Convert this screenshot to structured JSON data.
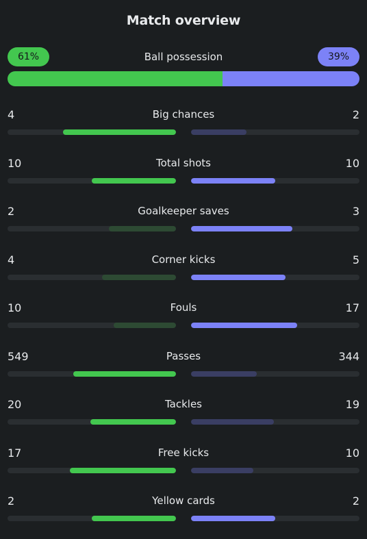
{
  "title": "Match overview",
  "possession": {
    "label": "Ball possession",
    "home": "61%",
    "away": "39%",
    "home_value": 61,
    "away_value": 39
  },
  "colors": {
    "home_win": "#43c74f",
    "home_lose": "#2d4a33",
    "away_win": "#7c82f7",
    "away_lose": "#3a3e63",
    "track": "#2a2e31"
  },
  "stats": [
    {
      "label": "Big chances",
      "home": "4",
      "away": "2",
      "home_value": 4,
      "away_value": 2,
      "home_fill": 0.67,
      "away_fill": 0.33
    },
    {
      "label": "Total shots",
      "home": "10",
      "away": "10",
      "home_value": 10,
      "away_value": 10,
      "home_fill": 0.5,
      "away_fill": 0.5
    },
    {
      "label": "Goalkeeper saves",
      "home": "2",
      "away": "3",
      "home_value": 2,
      "away_value": 3,
      "home_fill": 0.4,
      "away_fill": 0.6
    },
    {
      "label": "Corner kicks",
      "home": "4",
      "away": "5",
      "home_value": 4,
      "away_value": 5,
      "home_fill": 0.44,
      "away_fill": 0.56
    },
    {
      "label": "Fouls",
      "home": "10",
      "away": "17",
      "home_value": 10,
      "away_value": 17,
      "home_fill": 0.37,
      "away_fill": 0.63
    },
    {
      "label": "Passes",
      "home": "549",
      "away": "344",
      "home_value": 549,
      "away_value": 344,
      "home_fill": 0.61,
      "away_fill": 0.39
    },
    {
      "label": "Tackles",
      "home": "20",
      "away": "19",
      "home_value": 20,
      "away_value": 19,
      "home_fill": 0.51,
      "away_fill": 0.49
    },
    {
      "label": "Free kicks",
      "home": "17",
      "away": "10",
      "home_value": 17,
      "away_value": 10,
      "home_fill": 0.63,
      "away_fill": 0.37
    },
    {
      "label": "Yellow cards",
      "home": "2",
      "away": "2",
      "home_value": 2,
      "away_value": 2,
      "home_fill": 0.5,
      "away_fill": 0.5
    }
  ]
}
